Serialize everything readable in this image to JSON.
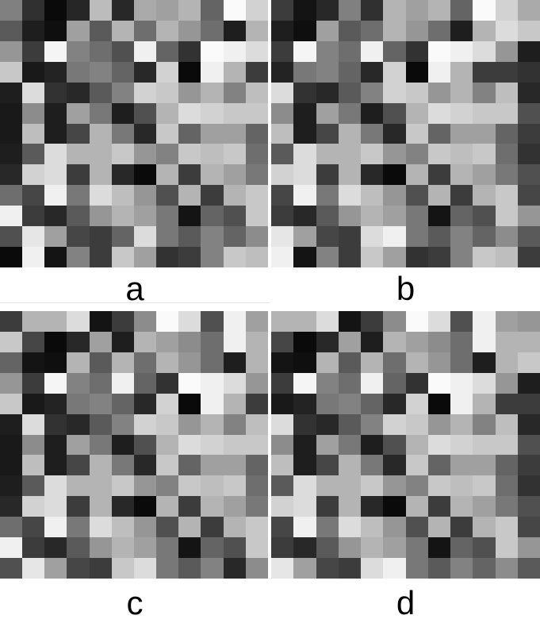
{
  "panels": [
    {
      "label": "a",
      "grid": [
        [
          128,
          48,
          10,
          38,
          188,
          40,
          170,
          160,
          180,
          100,
          250,
          210
        ],
        [
          90,
          30,
          15,
          160,
          90,
          180,
          110,
          180,
          150,
          110,
          30,
          180
        ],
        [
          150,
          60,
          245,
          130,
          110,
          80,
          240,
          100,
          50,
          250,
          240,
          220
        ],
        [
          200,
          25,
          35,
          120,
          130,
          100,
          40,
          210,
          10,
          240,
          180,
          60
        ],
        [
          30,
          220,
          50,
          40,
          90,
          130,
          210,
          200,
          150,
          180,
          130,
          190
        ],
        [
          25,
          140,
          30,
          160,
          120,
          30,
          80,
          180,
          220,
          210,
          200,
          200
        ],
        [
          25,
          190,
          30,
          70,
          180,
          120,
          40,
          200,
          100,
          160,
          160,
          100
        ],
        [
          30,
          90,
          220,
          180,
          180,
          200,
          150,
          130,
          200,
          190,
          200,
          110
        ],
        [
          40,
          210,
          220,
          60,
          180,
          40,
          10,
          180,
          60,
          180,
          160,
          120
        ],
        [
          110,
          70,
          240,
          120,
          220,
          190,
          150,
          80,
          180,
          60,
          180,
          200
        ],
        [
          240,
          60,
          40,
          90,
          150,
          180,
          160,
          120,
          20,
          100,
          80,
          200
        ],
        [
          80,
          230,
          160,
          70,
          60,
          100,
          220,
          120,
          90,
          130,
          100,
          140
        ],
        [
          10,
          240,
          20,
          130,
          60,
          200,
          160,
          50,
          60,
          130,
          200,
          190
        ]
      ]
    },
    {
      "label": "b",
      "grid": [
        [
          60,
          20,
          40,
          128,
          48,
          180,
          160,
          180,
          100,
          250,
          210,
          170
        ],
        [
          30,
          15,
          160,
          90,
          110,
          180,
          150,
          110,
          30,
          180,
          220,
          200
        ],
        [
          60,
          245,
          130,
          110,
          240,
          100,
          50,
          250,
          240,
          220,
          150,
          30
        ],
        [
          35,
          120,
          130,
          100,
          40,
          210,
          10,
          240,
          180,
          60,
          60,
          50
        ],
        [
          220,
          50,
          40,
          90,
          130,
          210,
          200,
          150,
          180,
          130,
          190,
          40
        ],
        [
          140,
          30,
          160,
          120,
          30,
          80,
          180,
          220,
          210,
          200,
          200,
          80
        ],
        [
          190,
          30,
          70,
          180,
          120,
          40,
          200,
          100,
          160,
          160,
          100,
          60
        ],
        [
          90,
          220,
          180,
          180,
          200,
          150,
          130,
          200,
          190,
          200,
          110,
          50
        ],
        [
          210,
          220,
          60,
          180,
          40,
          10,
          180,
          60,
          180,
          160,
          120,
          80
        ],
        [
          70,
          240,
          120,
          220,
          190,
          150,
          80,
          180,
          60,
          180,
          200,
          70
        ],
        [
          60,
          40,
          90,
          150,
          180,
          160,
          120,
          20,
          100,
          80,
          200,
          150
        ],
        [
          230,
          160,
          70,
          60,
          220,
          240,
          120,
          90,
          130,
          100,
          140,
          90
        ],
        [
          240,
          20,
          130,
          60,
          200,
          160,
          50,
          60,
          130,
          200,
          190,
          60
        ]
      ]
    },
    {
      "label": "c",
      "grid": [
        [
          60,
          180,
          180,
          220,
          20,
          60,
          140,
          250,
          220,
          80,
          240,
          160
        ],
        [
          200,
          70,
          10,
          40,
          160,
          30,
          180,
          160,
          140,
          110,
          240,
          180
        ],
        [
          100,
          20,
          15,
          180,
          90,
          180,
          110,
          180,
          150,
          110,
          30,
          180
        ],
        [
          150,
          60,
          245,
          130,
          110,
          240,
          100,
          50,
          250,
          240,
          220,
          150
        ],
        [
          200,
          25,
          35,
          120,
          130,
          100,
          40,
          210,
          10,
          240,
          180,
          60
        ],
        [
          30,
          220,
          50,
          40,
          90,
          130,
          210,
          200,
          150,
          180,
          130,
          190
        ],
        [
          25,
          140,
          30,
          160,
          120,
          30,
          80,
          180,
          220,
          210,
          200,
          200
        ],
        [
          25,
          190,
          30,
          70,
          180,
          120,
          40,
          200,
          100,
          160,
          160,
          100
        ],
        [
          30,
          90,
          220,
          180,
          180,
          200,
          150,
          130,
          200,
          190,
          200,
          110
        ],
        [
          40,
          210,
          220,
          60,
          180,
          40,
          10,
          180,
          60,
          180,
          160,
          120
        ],
        [
          110,
          70,
          240,
          120,
          220,
          190,
          150,
          80,
          180,
          60,
          180,
          200
        ],
        [
          240,
          60,
          40,
          90,
          150,
          180,
          160,
          120,
          20,
          100,
          80,
          200
        ],
        [
          80,
          230,
          160,
          70,
          60,
          200,
          220,
          120,
          90,
          130,
          40,
          140
        ]
      ]
    },
    {
      "label": "d",
      "grid": [
        [
          180,
          180,
          220,
          20,
          60,
          140,
          250,
          220,
          80,
          240,
          160,
          150
        ],
        [
          70,
          10,
          40,
          160,
          30,
          180,
          160,
          140,
          110,
          240,
          180,
          180
        ],
        [
          20,
          15,
          180,
          90,
          180,
          110,
          180,
          150,
          110,
          30,
          180,
          200
        ],
        [
          60,
          245,
          130,
          110,
          240,
          100,
          50,
          250,
          240,
          220,
          150,
          30
        ],
        [
          25,
          35,
          120,
          130,
          100,
          40,
          210,
          10,
          240,
          180,
          60,
          60
        ],
        [
          220,
          50,
          40,
          90,
          130,
          210,
          200,
          150,
          180,
          130,
          190,
          40
        ],
        [
          140,
          30,
          160,
          120,
          30,
          80,
          180,
          220,
          210,
          200,
          200,
          80
        ],
        [
          190,
          30,
          70,
          180,
          120,
          40,
          200,
          100,
          160,
          160,
          100,
          60
        ],
        [
          90,
          220,
          180,
          180,
          200,
          150,
          130,
          200,
          190,
          200,
          110,
          50
        ],
        [
          210,
          220,
          60,
          180,
          40,
          10,
          180,
          60,
          180,
          160,
          120,
          80
        ],
        [
          70,
          240,
          120,
          220,
          190,
          150,
          80,
          180,
          60,
          180,
          200,
          70
        ],
        [
          60,
          40,
          90,
          150,
          180,
          160,
          120,
          20,
          100,
          80,
          200,
          150
        ],
        [
          230,
          160,
          70,
          60,
          220,
          240,
          120,
          90,
          130,
          100,
          140,
          90
        ]
      ]
    }
  ]
}
